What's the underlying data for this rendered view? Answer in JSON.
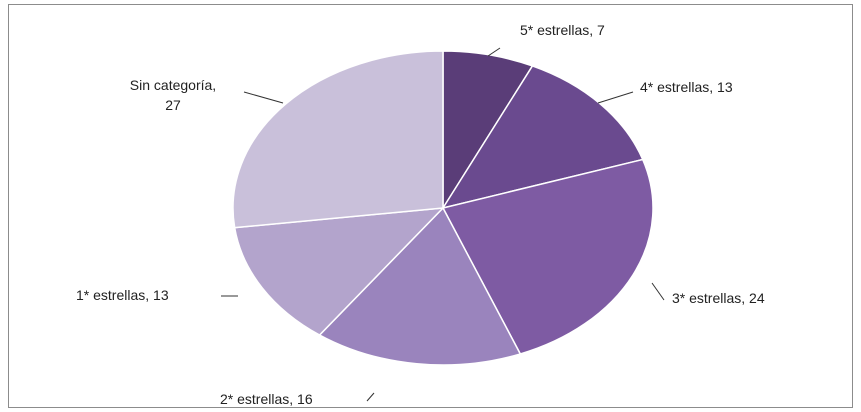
{
  "chart_data": {
    "type": "pie",
    "title": "",
    "slices": [
      {
        "label": "5* estrellas",
        "value": 7,
        "color": "#5a3d78",
        "text": "5* estrellas, 7"
      },
      {
        "label": "4* estrellas",
        "value": 13,
        "color": "#6a4a8f",
        "text": "4* estrellas, 13"
      },
      {
        "label": "3* estrellas",
        "value": 24,
        "color": "#7e5ba3",
        "text": "3* estrellas, 24"
      },
      {
        "label": "2* estrellas",
        "value": 16,
        "color": "#9a84bd",
        "text": "2* estrellas, 16"
      },
      {
        "label": "1* estrellas",
        "value": 13,
        "color": "#b3a4cc",
        "text": "1* estrellas, 13"
      },
      {
        "label": "Sin categoría",
        "value": 27,
        "color": "#c9c0da",
        "text_lines": [
          "Sin categoría,",
          "27"
        ]
      }
    ],
    "start_angle_deg": 0,
    "direction": "clockwise"
  }
}
